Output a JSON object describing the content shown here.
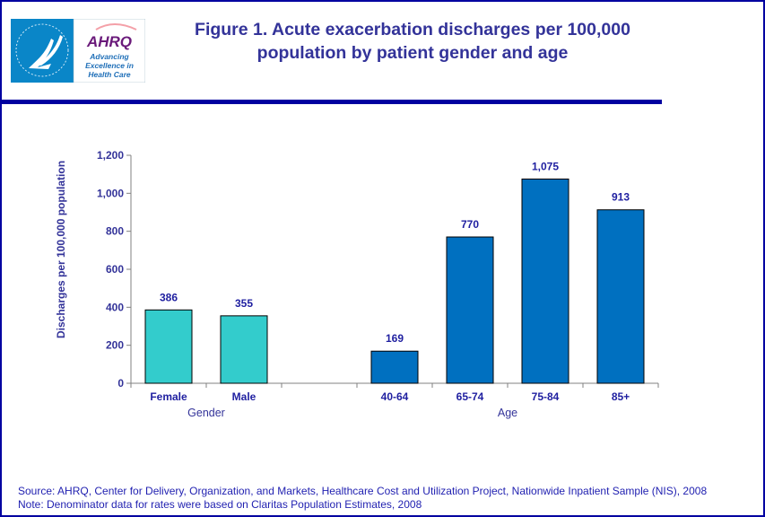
{
  "header": {
    "title_line1": "Figure 1. Acute exacerbation discharges per 100,000",
    "title_line2": "population by patient gender and age",
    "logo_text": [
      "AHRQ",
      "Advancing",
      "Excellence in",
      "Health Care"
    ]
  },
  "footer": {
    "source": "Source: AHRQ,  Center for Delivery, Organization, and Markets, Healthcare Cost and Utilization Project, Nationwide Inpatient Sample (NIS), 2008",
    "note": "Note: Denominator data for rates were based on Claritas Population Estimates, 2008"
  },
  "chart_data": {
    "type": "bar",
    "title": "Figure 1. Acute exacerbation discharges per 100,000 population by patient gender and age",
    "ylabel": "Discharges per 100,000 population",
    "ylim": [
      0,
      1200
    ],
    "yticks": [
      "0",
      "200",
      "400",
      "600",
      "800",
      "1,000",
      "1,200"
    ],
    "grid": false,
    "groups": [
      {
        "label": "Gender",
        "color": "#33cccc",
        "categories": [
          "Female",
          "Male"
        ],
        "values": [
          386,
          355
        ],
        "data_labels": [
          "386",
          "355"
        ]
      },
      {
        "label": "Age",
        "color": "#0070c0",
        "categories": [
          "40-64",
          "65-74",
          "75-84",
          "85+"
        ],
        "values": [
          169,
          770,
          1075,
          913
        ],
        "data_labels": [
          "169",
          "770",
          "1,075",
          "913"
        ]
      }
    ]
  }
}
